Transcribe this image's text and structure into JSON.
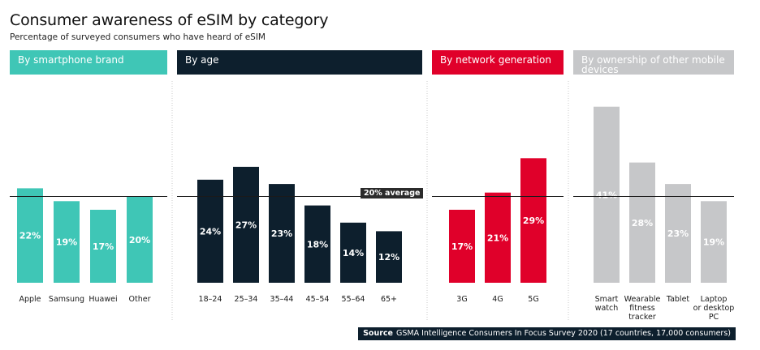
{
  "chart_data": {
    "type": "bar",
    "title": "Consumer awareness of eSIM by category",
    "subtitle": "Percentage of surveyed consumers who have heard of eSIM",
    "unit": "%",
    "ylim": [
      0,
      50
    ],
    "average": {
      "value": 20,
      "label": "20%  average"
    },
    "panels": [
      {
        "id": "brand",
        "title": "By smartphone brand",
        "color": "#3fc6b6",
        "header_color": "#3fc6b6",
        "categories": [
          "Apple",
          "Samsung",
          "Huawei",
          "Other"
        ],
        "values": [
          22,
          19,
          17,
          20
        ]
      },
      {
        "id": "age",
        "title": "By age",
        "color": "#0d1f2d",
        "header_color": "#0d1f2d",
        "categories": [
          "18–24",
          "25–34",
          "35–44",
          "45–54",
          "55–64",
          "65+"
        ],
        "values": [
          24,
          27,
          23,
          18,
          14,
          12
        ]
      },
      {
        "id": "network",
        "title": "By network generation",
        "color": "#e0002a",
        "header_color": "#e0002a",
        "categories": [
          "3G",
          "4G",
          "5G"
        ],
        "values": [
          17,
          21,
          29
        ]
      },
      {
        "id": "ownership",
        "title": "By ownership of other mobile devices",
        "color": "#c6c7c9",
        "header_color": "#c6c7c9",
        "categories": [
          "Smart watch",
          "Wearable fitness tracker",
          "Tablet",
          "Laptop or desktop PC"
        ],
        "category_lines": [
          [
            "Smart",
            "watch"
          ],
          [
            "Wearable",
            "fitness",
            "tracker"
          ],
          [
            "Tablet"
          ],
          [
            "Laptop",
            "or desktop",
            "PC"
          ]
        ],
        "values": [
          41,
          28,
          23,
          19
        ]
      }
    ]
  },
  "source": {
    "label": "Source",
    "text": "GSMA Intelligence Consumers In Focus Survey 2020 (17 countries, 17,000 consumers)"
  }
}
